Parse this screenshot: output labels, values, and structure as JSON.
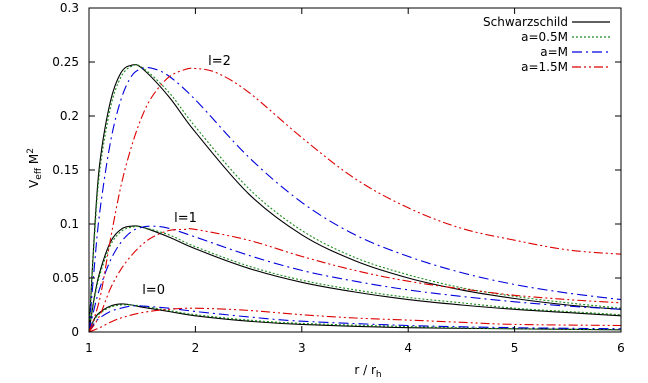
{
  "chart_data": {
    "type": "line",
    "xlabel": "r / r",
    "xlabel_sub": "h",
    "ylabel_main": "V",
    "ylabel_sub": "eff",
    "ylabel_rest": " M",
    "ylabel_sup": "2",
    "xlim": [
      1,
      6
    ],
    "ylim": [
      0,
      0.3
    ],
    "x_ticks": [
      1,
      2,
      3,
      4,
      5,
      6
    ],
    "x_tick_labels": [
      "1",
      "2",
      "3",
      "4",
      "5",
      "6"
    ],
    "y_ticks": [
      0,
      0.05,
      0.1,
      0.15,
      0.2,
      0.25,
      0.3
    ],
    "y_tick_labels": [
      "0",
      "0.05",
      "0.1",
      "0.15",
      "0.2",
      "0.25",
      "0.3"
    ],
    "grid": false,
    "legend_position": "top-right",
    "annotations": [
      {
        "text": "l=2",
        "x": 2.12,
        "y": 0.247
      },
      {
        "text": "l=1",
        "x": 1.8,
        "y": 0.102
      },
      {
        "text": "l=0",
        "x": 1.5,
        "y": 0.035
      }
    ],
    "series": [
      {
        "name": "Schwarzschild",
        "color": "#000000",
        "dash": "solid",
        "groups": [
          {
            "l": 2,
            "points": [
              [
                1,
                0
              ],
              [
                1.05,
                0.09
              ],
              [
                1.1,
                0.155
              ],
              [
                1.2,
                0.213
              ],
              [
                1.3,
                0.24
              ],
              [
                1.4,
                0.247
              ],
              [
                1.5,
                0.244
              ],
              [
                1.75,
                0.218
              ],
              [
                2,
                0.185
              ],
              [
                2.5,
                0.128
              ],
              [
                3,
                0.09
              ],
              [
                3.5,
                0.066
              ],
              [
                4,
                0.05
              ],
              [
                4.5,
                0.039
              ],
              [
                5,
                0.031
              ],
              [
                5.5,
                0.025
              ],
              [
                6,
                0.021
              ]
            ]
          },
          {
            "l": 1,
            "points": [
              [
                1,
                0
              ],
              [
                1.05,
                0.032
              ],
              [
                1.1,
                0.055
              ],
              [
                1.2,
                0.083
              ],
              [
                1.3,
                0.095
              ],
              [
                1.4,
                0.098
              ],
              [
                1.5,
                0.097
              ],
              [
                1.75,
                0.088
              ],
              [
                2,
                0.077
              ],
              [
                2.5,
                0.059
              ],
              [
                3,
                0.046
              ],
              [
                3.5,
                0.037
              ],
              [
                4,
                0.03
              ],
              [
                4.5,
                0.025
              ],
              [
                5,
                0.021
              ],
              [
                5.5,
                0.018
              ],
              [
                6,
                0.015
              ]
            ]
          },
          {
            "l": 0,
            "points": [
              [
                1,
                0
              ],
              [
                1.05,
                0.012
              ],
              [
                1.1,
                0.018
              ],
              [
                1.2,
                0.024
              ],
              [
                1.3,
                0.026
              ],
              [
                1.4,
                0.025
              ],
              [
                1.5,
                0.023
              ],
              [
                1.75,
                0.019
              ],
              [
                2,
                0.015
              ],
              [
                2.5,
                0.01
              ],
              [
                3,
                0.007
              ],
              [
                4,
                0.004
              ],
              [
                5,
                0.003
              ],
              [
                6,
                0.002
              ]
            ]
          }
        ]
      },
      {
        "name": "a=0.5M",
        "color": "#1a8c1a",
        "dash": "dotted",
        "groups": [
          {
            "l": 2,
            "points": [
              [
                1,
                0
              ],
              [
                1.05,
                0.085
              ],
              [
                1.1,
                0.148
              ],
              [
                1.2,
                0.207
              ],
              [
                1.3,
                0.236
              ],
              [
                1.4,
                0.246
              ],
              [
                1.5,
                0.245
              ],
              [
                1.75,
                0.222
              ],
              [
                2,
                0.19
              ],
              [
                2.5,
                0.133
              ],
              [
                3,
                0.094
              ],
              [
                3.5,
                0.069
              ],
              [
                4,
                0.053
              ],
              [
                4.5,
                0.041
              ],
              [
                5,
                0.033
              ],
              [
                5.5,
                0.027
              ],
              [
                6,
                0.022
              ]
            ]
          },
          {
            "l": 1,
            "points": [
              [
                1,
                0
              ],
              [
                1.05,
                0.03
              ],
              [
                1.1,
                0.052
              ],
              [
                1.2,
                0.08
              ],
              [
                1.3,
                0.093
              ],
              [
                1.4,
                0.097
              ],
              [
                1.5,
                0.097
              ],
              [
                1.75,
                0.09
              ],
              [
                2,
                0.079
              ],
              [
                2.5,
                0.061
              ],
              [
                3,
                0.048
              ],
              [
                3.5,
                0.039
              ],
              [
                4,
                0.032
              ],
              [
                4.5,
                0.027
              ],
              [
                5,
                0.022
              ],
              [
                5.5,
                0.019
              ],
              [
                6,
                0.016
              ]
            ]
          },
          {
            "l": 0,
            "points": [
              [
                1,
                0
              ],
              [
                1.05,
                0.011
              ],
              [
                1.1,
                0.017
              ],
              [
                1.2,
                0.023
              ],
              [
                1.3,
                0.025
              ],
              [
                1.4,
                0.025
              ],
              [
                1.5,
                0.024
              ],
              [
                1.75,
                0.02
              ],
              [
                2,
                0.016
              ],
              [
                2.5,
                0.011
              ],
              [
                3,
                0.008
              ],
              [
                4,
                0.005
              ],
              [
                5,
                0.003
              ],
              [
                6,
                0.002
              ]
            ]
          }
        ]
      },
      {
        "name": "a=M",
        "color": "#0000dd",
        "dash": "dash-dot",
        "groups": [
          {
            "l": 2,
            "points": [
              [
                1,
                0
              ],
              [
                1.05,
                0.06
              ],
              [
                1.1,
                0.11
              ],
              [
                1.2,
                0.175
              ],
              [
                1.3,
                0.215
              ],
              [
                1.4,
                0.237
              ],
              [
                1.5,
                0.244
              ],
              [
                1.6,
                0.244
              ],
              [
                1.75,
                0.237
              ],
              [
                2,
                0.215
              ],
              [
                2.5,
                0.162
              ],
              [
                3,
                0.12
              ],
              [
                3.5,
                0.09
              ],
              [
                4,
                0.07
              ],
              [
                4.5,
                0.055
              ],
              [
                5,
                0.044
              ],
              [
                5.5,
                0.036
              ],
              [
                6,
                0.03
              ]
            ]
          },
          {
            "l": 1,
            "points": [
              [
                1,
                0
              ],
              [
                1.05,
                0.022
              ],
              [
                1.1,
                0.04
              ],
              [
                1.2,
                0.066
              ],
              [
                1.3,
                0.083
              ],
              [
                1.4,
                0.093
              ],
              [
                1.5,
                0.097
              ],
              [
                1.6,
                0.098
              ],
              [
                1.75,
                0.096
              ],
              [
                2,
                0.088
              ],
              [
                2.5,
                0.071
              ],
              [
                3,
                0.057
              ],
              [
                3.5,
                0.047
              ],
              [
                4,
                0.039
              ],
              [
                4.5,
                0.033
              ],
              [
                5,
                0.028
              ],
              [
                5.5,
                0.024
              ],
              [
                6,
                0.021
              ]
            ]
          },
          {
            "l": 0,
            "points": [
              [
                1,
                0
              ],
              [
                1.05,
                0.008
              ],
              [
                1.1,
                0.013
              ],
              [
                1.2,
                0.019
              ],
              [
                1.3,
                0.022
              ],
              [
                1.4,
                0.024
              ],
              [
                1.5,
                0.024
              ],
              [
                1.75,
                0.022
              ],
              [
                2,
                0.019
              ],
              [
                2.5,
                0.014
              ],
              [
                3,
                0.01
              ],
              [
                4,
                0.006
              ],
              [
                5,
                0.004
              ],
              [
                6,
                0.003
              ]
            ]
          }
        ]
      },
      {
        "name": "a=1.5M",
        "color": "#dd0000",
        "dash": "dash-dot-dot",
        "groups": [
          {
            "l": 2,
            "points": [
              [
                1,
                0
              ],
              [
                1.1,
                0.03
              ],
              [
                1.2,
                0.085
              ],
              [
                1.3,
                0.135
              ],
              [
                1.4,
                0.172
              ],
              [
                1.5,
                0.2
              ],
              [
                1.6,
                0.219
              ],
              [
                1.75,
                0.236
              ],
              [
                1.9,
                0.243
              ],
              [
                2,
                0.244
              ],
              [
                2.2,
                0.24
              ],
              [
                2.5,
                0.222
              ],
              [
                3,
                0.18
              ],
              [
                3.5,
                0.142
              ],
              [
                4,
                0.115
              ],
              [
                4.5,
                0.096
              ],
              [
                5,
                0.085
              ],
              [
                5.5,
                0.076
              ],
              [
                6,
                0.072
              ]
            ]
          },
          {
            "l": 1,
            "points": [
              [
                1,
                0
              ],
              [
                1.1,
                0.015
              ],
              [
                1.2,
                0.04
              ],
              [
                1.3,
                0.058
              ],
              [
                1.4,
                0.071
              ],
              [
                1.5,
                0.081
              ],
              [
                1.6,
                0.088
              ],
              [
                1.75,
                0.094
              ],
              [
                1.9,
                0.095
              ],
              [
                2,
                0.095
              ],
              [
                2.5,
                0.085
              ],
              [
                3,
                0.07
              ],
              [
                3.5,
                0.057
              ],
              [
                4,
                0.047
              ],
              [
                4.5,
                0.04
              ],
              [
                5,
                0.034
              ],
              [
                5.5,
                0.03
              ],
              [
                6,
                0.027
              ]
            ]
          },
          {
            "l": 0,
            "points": [
              [
                1,
                0
              ],
              [
                1.1,
                0.004
              ],
              [
                1.2,
                0.009
              ],
              [
                1.3,
                0.013
              ],
              [
                1.5,
                0.018
              ],
              [
                1.75,
                0.021
              ],
              [
                2,
                0.022
              ],
              [
                2.5,
                0.02
              ],
              [
                3,
                0.016
              ],
              [
                3.5,
                0.013
              ],
              [
                4,
                0.011
              ],
              [
                4.5,
                0.009
              ],
              [
                5,
                0.007
              ],
              [
                6,
                0.006
              ]
            ]
          }
        ]
      }
    ]
  }
}
